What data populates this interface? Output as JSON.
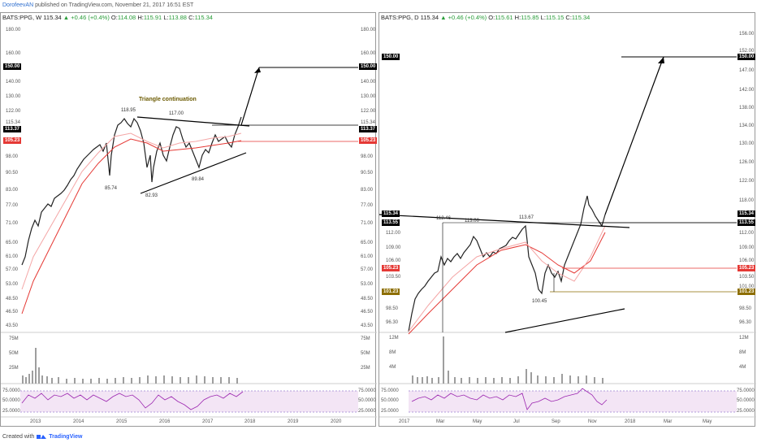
{
  "header": {
    "author": "DorofeevAN",
    "published": "published on TradingView.com, November 21, 2017 16:51 EST"
  },
  "left": {
    "title_symbol": "BATS:PPG, W",
    "title_price": "115.34",
    "title_change": "▲ +0.46 (+0.4%)",
    "title_ohlc_o": "O:",
    "title_o": "114.08",
    "title_h_lbl": "H:",
    "title_h": "115.91",
    "title_l_lbl": "L:",
    "title_l": "113.88",
    "title_c_lbl": "C:",
    "title_c": "115.34",
    "axis_labels": [
      "180.00",
      "160.00",
      "150.00",
      "140.00",
      "130.00",
      "122.00",
      "115.34",
      "106.00",
      "98.00",
      "90.50",
      "83.00",
      "77.00",
      "71.00",
      "65.00",
      "61.00",
      "57.00",
      "53.00",
      "48.50",
      "46.50",
      "43.50"
    ],
    "left_axis_labels": [
      "180.00",
      "160.00",
      "140.00",
      "130.00",
      "122.00",
      "115.34",
      "106.00",
      "98.00",
      "90.50",
      "83.00",
      "77.00",
      "71.00",
      "65.00",
      "61.00",
      "57.00",
      "53.00",
      "48.50",
      "46.50",
      "43.50"
    ],
    "price_150": "150.00",
    "price_113": "113.37",
    "price_105": "105.23",
    "annotation_note": "Triangle continuation",
    "point_labels": [
      "85.74",
      "118.95",
      "82.93",
      "117.00",
      "89.84"
    ],
    "vol_labels": [
      "75M",
      "50M",
      "25M"
    ],
    "rsi_labels": [
      "75.0000",
      "50.0000",
      "25.0000"
    ],
    "x_labels": [
      "2013",
      "2014",
      "2015",
      "2016",
      "2017",
      "2018",
      "2019",
      "2020"
    ]
  },
  "right": {
    "title_symbol": "BATS:PPG, D",
    "title_price": "115.34",
    "title_change": "▲ +0.46 (+0.4%)",
    "title_ohlc_o": "O:",
    "title_o": "115.61",
    "title_h_lbl": "H:",
    "title_h": "115.85",
    "title_l_lbl": "L:",
    "title_l": "115.15",
    "title_c_lbl": "C:",
    "title_c": "115.34",
    "axis_labels": [
      "156.00",
      "152.00",
      "147.00",
      "142.00",
      "138.00",
      "134.00",
      "130.00",
      "126.00",
      "122.00",
      "118.00",
      "112.00",
      "109.00",
      "106.00",
      "103.50",
      "101.00",
      "98.50",
      "96.30"
    ],
    "left_axis_labels": [
      "112.00",
      "109.00",
      "106.00",
      "103.50",
      "98.50",
      "96.30"
    ],
    "price_150": "150.00",
    "price_115": "115.34",
    "price_113": "113.55",
    "price_105": "105.23",
    "price_101": "101.23",
    "point_labels": [
      "112.46",
      "113.00",
      "113.67",
      "100.45"
    ],
    "vol_labels": [
      "12M",
      "8M",
      "4M"
    ],
    "rsi_labels": [
      "75.0000",
      "50.0000",
      "25.0000"
    ],
    "x_labels": [
      "2017",
      "Mar",
      "May",
      "Jul",
      "Sep",
      "Nov",
      "2018",
      "Mar",
      "May"
    ]
  },
  "footer": {
    "created": "Created with",
    "brand": "TradingView"
  },
  "colors": {
    "red": "#e53935",
    "olive": "#8d6e00",
    "black": "#000000",
    "rsi_fill": "#f3e5f5",
    "rsi_line": "#9c27b0"
  }
}
